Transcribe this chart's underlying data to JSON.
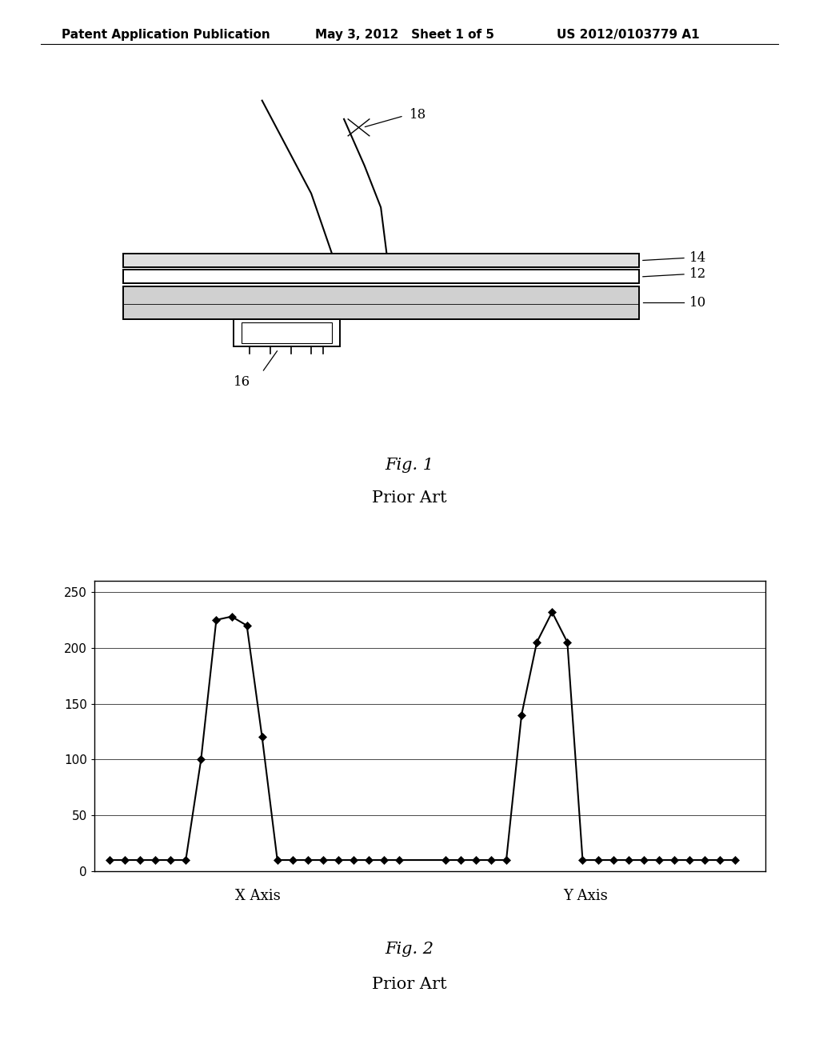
{
  "bg_color": "#ffffff",
  "header_left": "Patent Application Publication",
  "header_mid": "May 3, 2012   Sheet 1 of 5",
  "header_right": "US 2012/0103779 A1",
  "header_fontsize": 11,
  "fig1_title": "Fig. 1",
  "fig1_subtitle": "Prior Art",
  "fig2_title": "Fig. 2",
  "fig2_subtitle": "Prior Art",
  "chart_xlabel_left": "X Axis",
  "chart_xlabel_right": "Y Axis",
  "chart_yticks": [
    0,
    50,
    100,
    150,
    200,
    250
  ],
  "chart_ylim": [
    0,
    260
  ],
  "x_series_x": [
    1,
    2,
    3,
    4,
    5,
    6,
    7,
    8,
    9,
    10,
    11,
    12,
    13,
    14,
    15,
    16,
    17,
    18,
    19,
    20
  ],
  "x_series_y": [
    10,
    10,
    10,
    10,
    10,
    10,
    100,
    225,
    228,
    220,
    120,
    10,
    10,
    10,
    10,
    10,
    10,
    10,
    10,
    10
  ],
  "y_series_x": [
    1,
    2,
    3,
    4,
    5,
    6,
    7,
    8,
    9,
    10,
    11,
    12,
    13,
    14,
    15,
    16,
    17,
    18,
    19,
    20
  ],
  "y_series_y": [
    10,
    10,
    10,
    10,
    10,
    140,
    205,
    232,
    205,
    10,
    10,
    10,
    10,
    10,
    10,
    10,
    10,
    10,
    10,
    10
  ],
  "marker": "D",
  "marker_size": 5,
  "line_color": "#000000",
  "line_width": 1.5
}
